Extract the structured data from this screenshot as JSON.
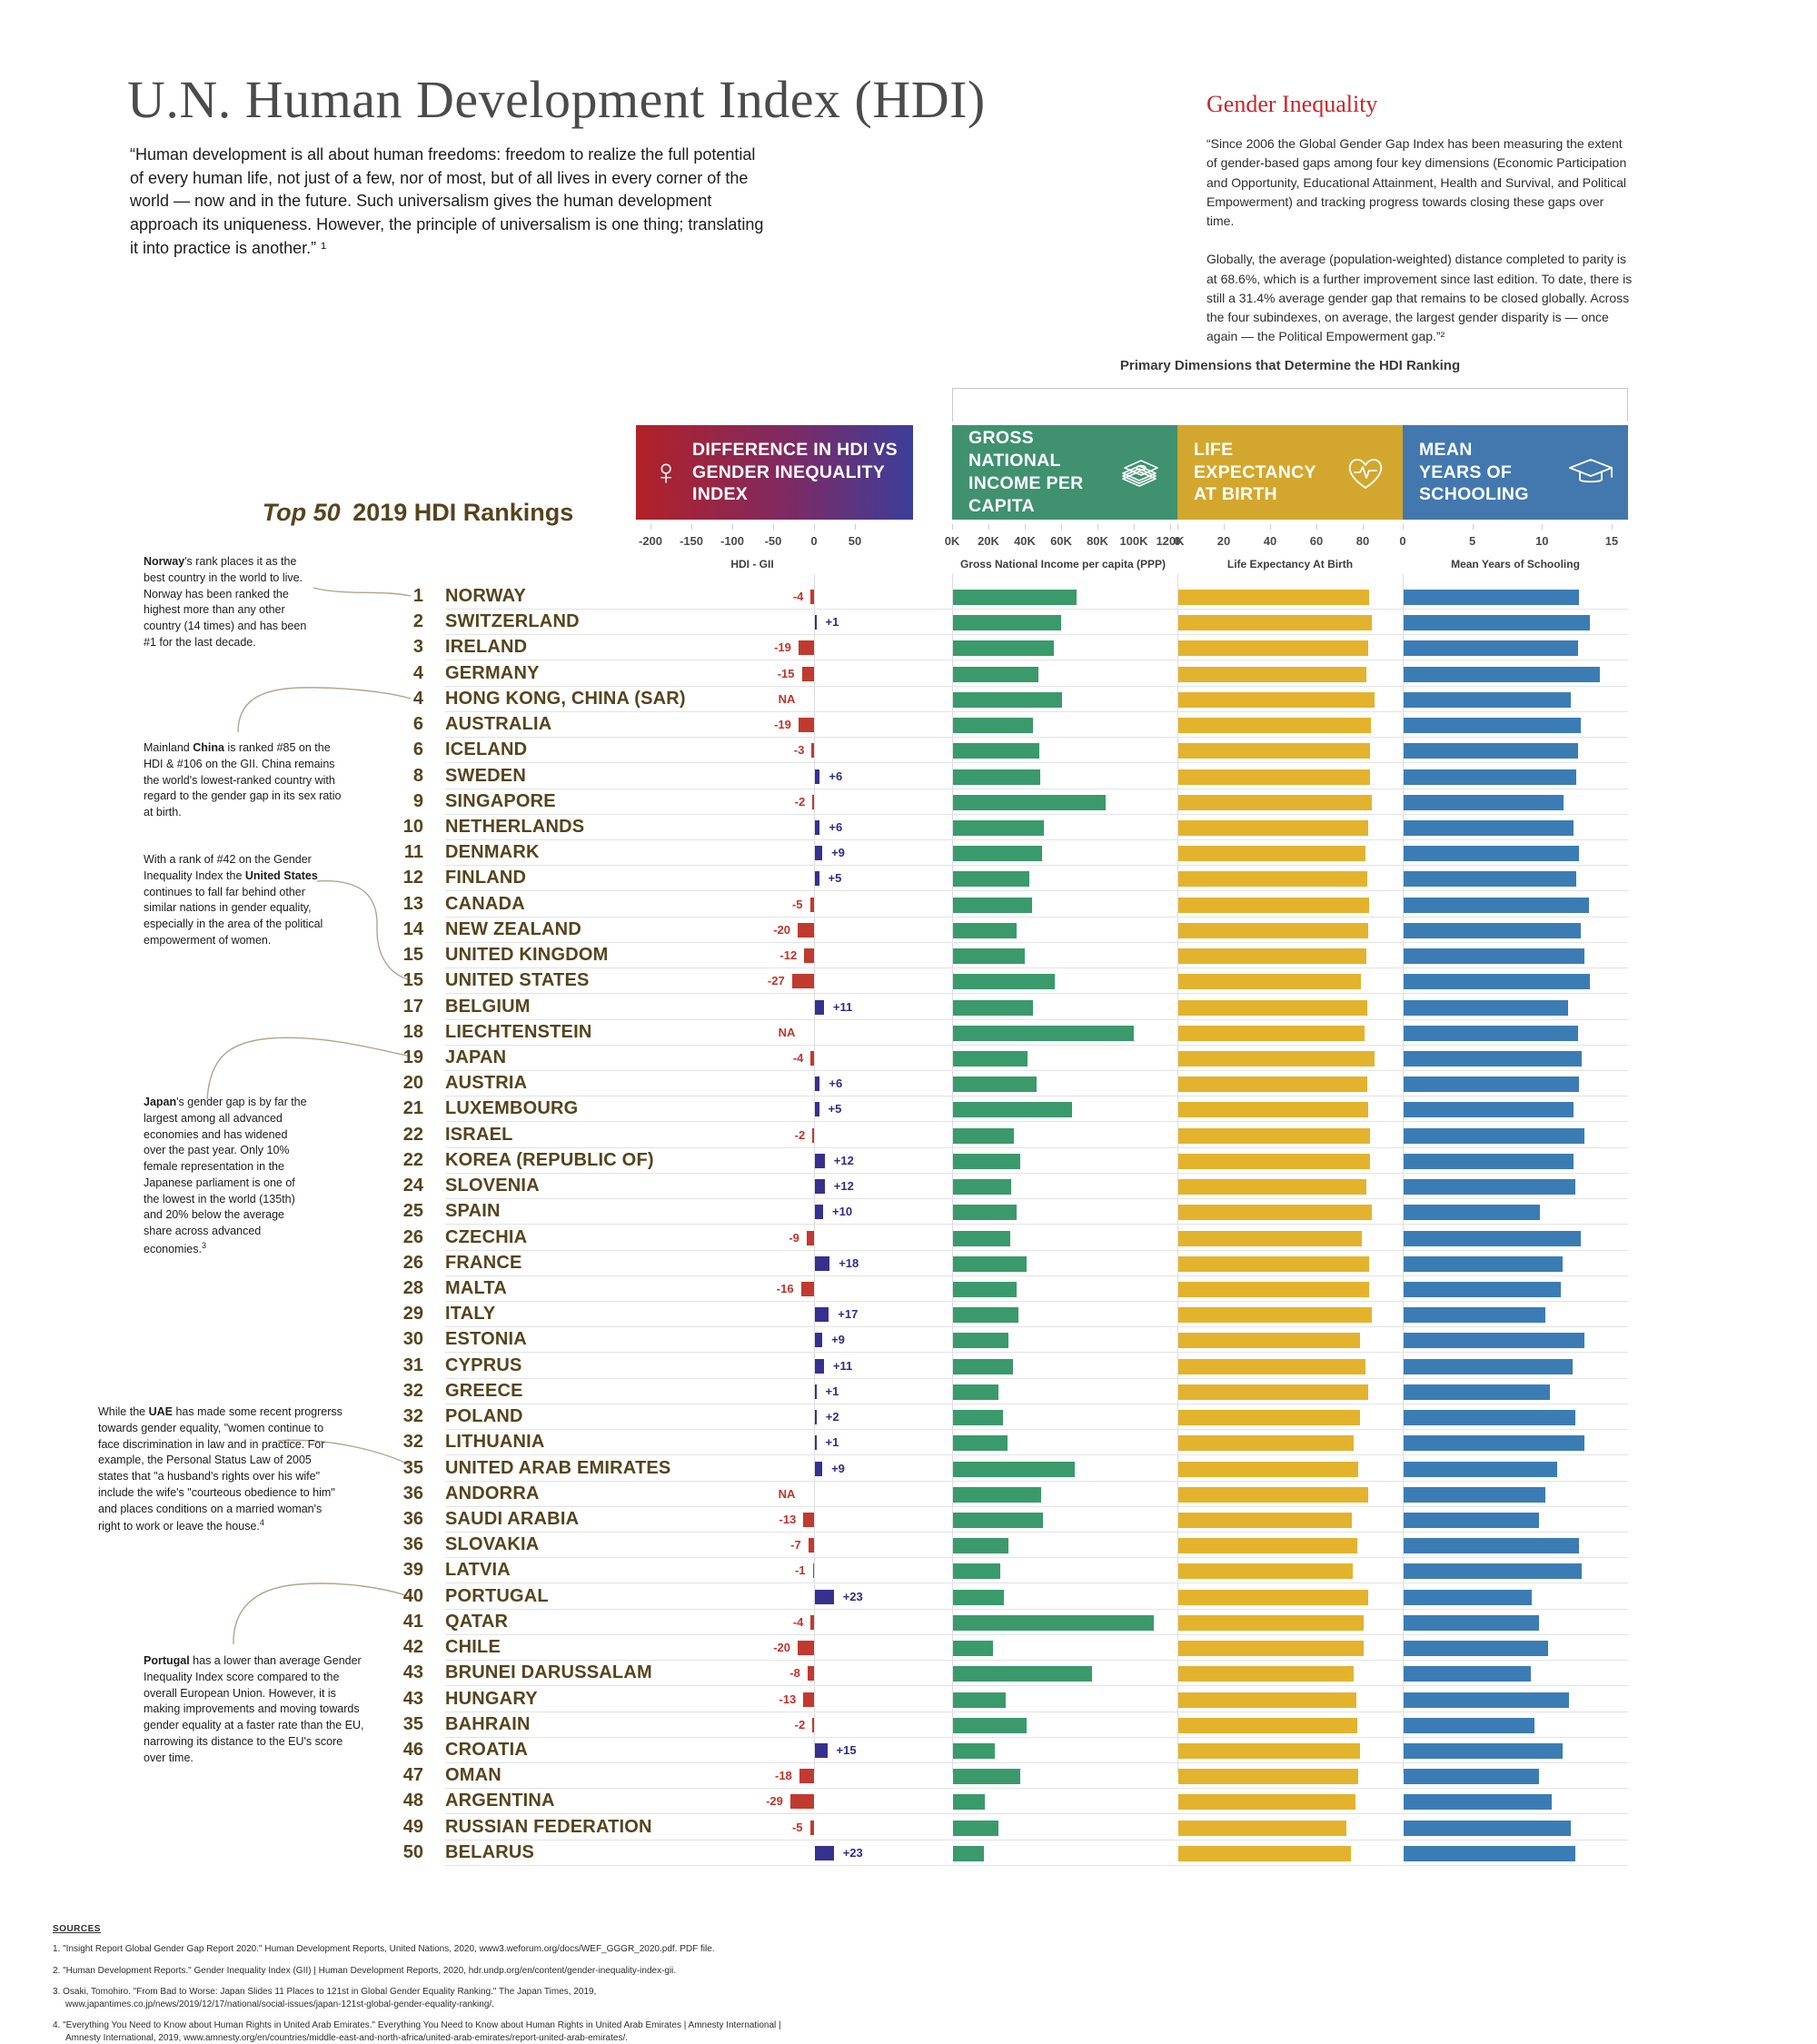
{
  "page": {
    "title": "U.N. Human Development Index (HDI)",
    "quote": "“Human development is all about human freedoms: freedom to realize the full potential of every human life, not just of a few, nor of most, but of all lives in every corner of the world — now and in the future. Such universalism gives the human development approach its uniqueness. However, the principle of universalism is one thing; translating it into practice is another.” ¹"
  },
  "gender_inequality": {
    "heading": "Gender Inequality",
    "para1": "“Since 2006 the Global Gender Gap Index has been measuring the extent of gender-based gaps among four key dimensions (Economic Participation and Opportunity, Educational Attainment, Health and Survival, and Political Empowerment) and tracking progress towards closing these gaps over time.",
    "para2": "Globally, the average (population-weighted) distance completed to parity is at 68.6%, which is a further improvement since last edition. To date, there is still a 31.4% average gender gap that remains to be closed globally.  Across the four subindexes, on average, the largest gender disparity is — once again — the Political Empowerment gap.”²"
  },
  "primary_dimensions_label": "Primary Dimensions that Determine the HDI Ranking",
  "rankings_title": {
    "italic": "Top 50",
    "rest": " 2019 HDI Rankings"
  },
  "columns": {
    "diff": {
      "title_lines": [
        "DIFFERENCE IN HDI VS",
        "GENDER INEQUALITY INDEX"
      ],
      "icon": "female-symbol",
      "female_glyph": "♀",
      "axis_ticks": [
        "-200",
        "-150",
        "-100",
        "-50",
        "0",
        "50"
      ],
      "axis_caption": "HDI - GII"
    },
    "gni": {
      "title_lines": [
        "GROSS NATIONAL",
        "INCOME PER",
        "CAPITA"
      ],
      "icon": "money-stack",
      "axis_ticks": [
        "0K",
        "20K",
        "40K",
        "60K",
        "80K",
        "100K",
        "120K"
      ],
      "axis_caption": "Gross National Income per capita (PPP)"
    },
    "life": {
      "title_lines": [
        "LIFE",
        "EXPECTANCY",
        "AT BIRTH"
      ],
      "icon": "heartbeat",
      "axis_ticks": [
        "0",
        "20",
        "40",
        "60",
        "80"
      ],
      "axis_caption": "Life Expectancy At Birth"
    },
    "school": {
      "title_lines": [
        "MEAN",
        "YEARS OF",
        "SCHOOLING"
      ],
      "icon": "graduation-cap",
      "axis_ticks": [
        "0",
        "5",
        "10",
        "15"
      ],
      "axis_caption": "Mean Years of Schooling"
    }
  },
  "chart_data": {
    "type": "bar",
    "title": "Top 50 2019 HDI Rankings",
    "legend_position": "top",
    "axis_ranges": {
      "hdi_gii_diff": [
        -200,
        50
      ],
      "gni_per_capita_k": [
        0,
        120
      ],
      "life_expectancy": [
        0,
        90
      ],
      "mean_years_schooling": [
        0,
        15
      ]
    },
    "ranks": [
      "1",
      "2",
      "3",
      "4",
      "4",
      "6",
      "6",
      "8",
      "9",
      "10",
      "11",
      "12",
      "13",
      "14",
      "15",
      "15",
      "17",
      "18",
      "19",
      "20",
      "21",
      "22",
      "22",
      "24",
      "25",
      "26",
      "26",
      "28",
      "29",
      "30",
      "31",
      "32",
      "32",
      "32",
      "35",
      "36",
      "36",
      "36",
      "39",
      "40",
      "41",
      "42",
      "43",
      "43",
      "35",
      "46",
      "47",
      "48",
      "49",
      "50"
    ],
    "categories": [
      "NORWAY",
      "SWITZERLAND",
      "IRELAND",
      "GERMANY",
      "HONG KONG, CHINA (SAR)",
      "AUSTRALIA",
      "ICELAND",
      "SWEDEN",
      "SINGAPORE",
      "NETHERLANDS",
      "DENMARK",
      "FINLAND",
      "CANADA",
      "NEW ZEALAND",
      "UNITED KINGDOM",
      "UNITED STATES",
      "BELGIUM",
      "LIECHTENSTEIN",
      "JAPAN",
      "AUSTRIA",
      "LUXEMBOURG",
      "ISRAEL",
      "KOREA (REPUBLIC OF)",
      "SLOVENIA",
      "SPAIN",
      "CZECHIA",
      "FRANCE",
      "MALTA",
      "ITALY",
      "ESTONIA",
      "CYPRUS",
      "GREECE",
      "POLAND",
      "LITHUANIA",
      "UNITED ARAB EMIRATES",
      "ANDORRA",
      "SAUDI ARABIA",
      "SLOVAKIA",
      "LATVIA",
      "PORTUGAL",
      "QATAR",
      "CHILE",
      "BRUNEI DARUSSALAM",
      "HUNGARY",
      "BAHRAIN",
      "CROATIA",
      "OMAN",
      "ARGENTINA",
      "RUSSIAN FEDERATION",
      "BELARUS"
    ],
    "series": [
      {
        "name": "Difference in HDI vs Gender Inequality Index (HDI - GII)",
        "labels": [
          "-4",
          "+1",
          "-19",
          "-15",
          "NA",
          "-19",
          "-3",
          "+6",
          "-2",
          "+6",
          "+9",
          "+5",
          "-5",
          "-20",
          "-12",
          "-27",
          "+11",
          "NA",
          "-4",
          "+6",
          "+5",
          "-2",
          "+12",
          "+12",
          "+10",
          "-9",
          "+18",
          "-16",
          "+17",
          "+9",
          "+11",
          "+1",
          "+2",
          "+1",
          "+9",
          "NA",
          "-13",
          "-7",
          "-1",
          "+23",
          "-4",
          "-20",
          "-8",
          "-13",
          "-2",
          "+15",
          "-18",
          "-29",
          "-5",
          "+23"
        ],
        "values": [
          -4,
          1,
          -19,
          -15,
          null,
          -19,
          -3,
          6,
          -2,
          6,
          9,
          5,
          -5,
          -20,
          -12,
          -27,
          11,
          null,
          -4,
          6,
          5,
          -2,
          12,
          12,
          10,
          -9,
          18,
          -16,
          17,
          9,
          11,
          1,
          2,
          1,
          9,
          null,
          -13,
          -7,
          -1,
          23,
          -4,
          -20,
          -8,
          -13,
          -2,
          15,
          -18,
          -29,
          -5,
          23
        ]
      },
      {
        "name": "Gross National Income per capita (PPP, thousands $)",
        "values": [
          68.1,
          59.4,
          55.7,
          46.9,
          60.2,
          44.1,
          47.6,
          48.0,
          83.8,
          50.0,
          48.8,
          41.8,
          43.6,
          35.1,
          39.5,
          56.1,
          43.8,
          99.7,
          40.8,
          46.2,
          65.5,
          33.7,
          36.8,
          32.1,
          35.0,
          31.6,
          40.5,
          34.8,
          36.1,
          30.4,
          33.1,
          24.9,
          27.6,
          29.8,
          66.9,
          48.6,
          49.3,
          30.7,
          26.0,
          27.9,
          110.5,
          22.0,
          76.4,
          28.8,
          40.4,
          23.1,
          37.0,
          17.6,
          25.0,
          17.0
        ]
      },
      {
        "name": "Life Expectancy At Birth (years)",
        "values": [
          82.3,
          83.6,
          82.1,
          81.2,
          84.7,
          83.3,
          82.9,
          82.7,
          83.5,
          82.1,
          80.8,
          81.7,
          82.3,
          82.1,
          81.2,
          78.9,
          81.5,
          80.5,
          84.5,
          81.4,
          82.1,
          82.8,
          82.8,
          81.2,
          83.4,
          79.2,
          82.5,
          82.4,
          83.4,
          78.6,
          80.8,
          82.1,
          78.5,
          75.7,
          77.8,
          81.8,
          75.0,
          77.4,
          75.2,
          81.9,
          80.1,
          80.0,
          75.7,
          76.7,
          77.2,
          78.3,
          77.6,
          76.5,
          72.4,
          74.6
        ]
      },
      {
        "name": "Mean Years of Schooling (years)",
        "values": [
          12.6,
          13.4,
          12.5,
          14.1,
          12.0,
          12.7,
          12.5,
          12.4,
          11.5,
          12.2,
          12.6,
          12.4,
          13.3,
          12.7,
          13.0,
          13.4,
          11.8,
          12.5,
          12.8,
          12.6,
          12.2,
          13.0,
          12.2,
          12.3,
          9.8,
          12.7,
          11.4,
          11.3,
          10.2,
          13.0,
          12.1,
          10.5,
          12.3,
          13.0,
          11.0,
          10.2,
          9.7,
          12.6,
          12.8,
          9.2,
          9.7,
          10.4,
          9.1,
          11.9,
          9.4,
          11.4,
          9.7,
          10.6,
          12.0,
          12.3
        ]
      }
    ]
  },
  "annotations": [
    {
      "segments": [
        {
          "t": "Norway",
          "b": true
        },
        {
          "t": "'s rank places it as the best country in the world to live. Norway has been ranked the highest more than any other country (14 times) and has been #1 for the last decade."
        }
      ]
    },
    {
      "segments": [
        {
          "t": "Mainland "
        },
        {
          "t": "China",
          "b": true
        },
        {
          "t": " is ranked #85 on the HDI & #106 on the GII. China remains the world's lowest-ranked country with regard to the gender gap in its sex ratio at birth."
        }
      ]
    },
    {
      "segments": [
        {
          "t": "With a rank of #42 on the Gender Inequality Index the "
        },
        {
          "t": "United States",
          "b": true
        },
        {
          "t": " continues to fall far behind other similar nations in gender equality, especially in the area of the political empowerment of women."
        }
      ]
    },
    {
      "segments": [
        {
          "t": "Japan",
          "b": true
        },
        {
          "t": "'s gender gap is by far the largest among all advanced economies and has widened over the past year.  Only 10% female representation in the Japanese parliament is one of the lowest in the world (135th) and 20% below the average share across advanced economies."
        },
        {
          "t": "3",
          "sup": true
        }
      ]
    },
    {
      "segments": [
        {
          "t": "While the "
        },
        {
          "t": "UAE",
          "b": true
        },
        {
          "t": " has made some recent progrerss towards gender equality, \"women continue to face discrimination in law and in practice. For example, the Personal Status Law of 2005 states that \"a husband's rights over his wife\" include the wife's \"courteous obedience to him\" and places conditions on a married woman's right to work or leave the house."
        },
        {
          "t": "4",
          "sup": true
        }
      ]
    },
    {
      "segments": [
        {
          "t": "Portugal",
          "b": true
        },
        {
          "t": " has a lower than average Gender Inequality Index score compared to the overall European Union. However, it is making improvements and moving towards gender equality at a faster rate than the EU, narrowing its distance to the EU's score over time."
        }
      ]
    }
  ],
  "sources": {
    "heading": "SOURCES",
    "items": [
      "\"Insight Report Global Gender Gap Report 2020.\" Human Development Reports, United Nations, 2020, www3.weforum.org/docs/WEF_GGGR_2020.pdf. PDF file.",
      "\"Human Development Reports.\" Gender Inequality Index (GII) | Human Development Reports, 2020, hdr.undp.org/en/content/gender-inequality-index-gii.",
      "Osaki, Tomohiro. \"From Bad to Worse: Japan Slides 11 Places to 121st in Global Gender Equality Ranking.\" The Japan Times, 2019, www.japantimes.co.jp/news/2019/12/17/national/social-issues/japan-121st-global-gender-equality-ranking/.",
      "\"Everything You Need to Know about Human Rights in United Arab Emirates.\" Everything You Need to Know about Human Rights in United Arab Emirates | Amnesty International | Amnesty International, 2019, www.amnesty.org/en/countries/middle-east-and-north-africa/united-arab-emirates/report-united-arab-emirates/."
    ]
  },
  "colors": {
    "bar_green": "#3a9a6b",
    "bar_yellow": "#e3b32d",
    "bar_blue": "#3c7cb5",
    "diff_negative": "#c13a30",
    "diff_positive": "#38308f",
    "label_negative": "#c0332b",
    "label_positive": "#322b87",
    "header_green": "#3f9170",
    "header_yellow": "#d3a72d",
    "header_blue": "#4278ad",
    "header_gradient_left": "#b22127",
    "header_gradient_right": "#3c3e9a",
    "brown_text": "#55441d",
    "red_heading": "#c9242b",
    "connector": "#b2a48c"
  }
}
